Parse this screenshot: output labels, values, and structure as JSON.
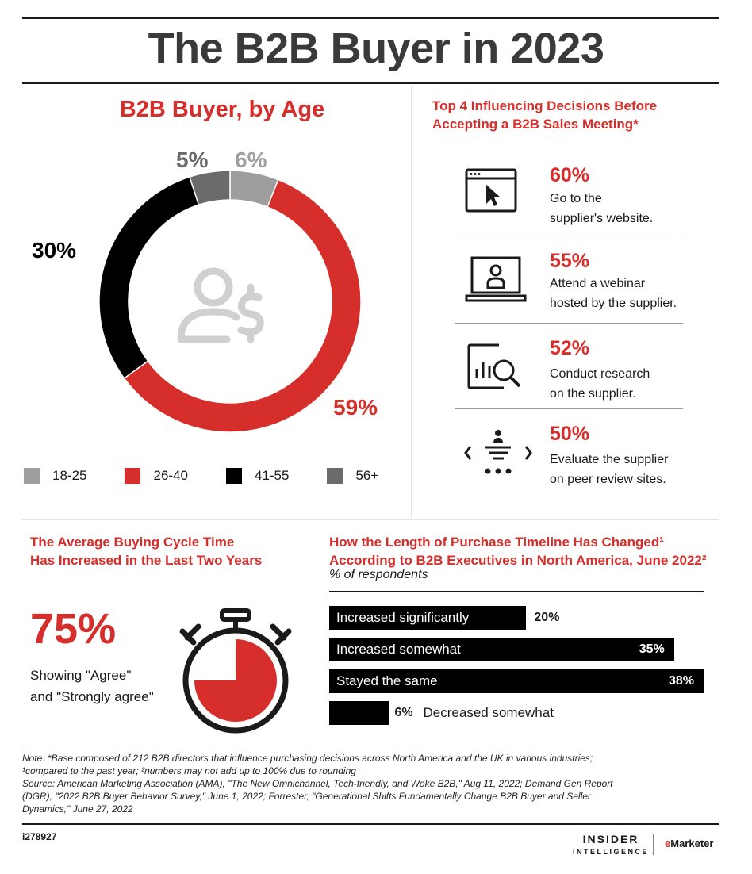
{
  "title": "The B2B Buyer in 2023",
  "age_section": {
    "title": "B2B Buyer, by Age",
    "legend": [
      {
        "label": "18-25",
        "color": "#9e9e9e"
      },
      {
        "label": "26-40",
        "color": "#d62e2a"
      },
      {
        "label": "41-55",
        "color": "#000000"
      },
      {
        "label": "56+",
        "color": "#6b6b6b"
      }
    ],
    "center_icon": "person-dollar-icon"
  },
  "top4": {
    "title_line1": "Top 4 Influencing Decisions Before",
    "title_line2": "Accepting a B2B Sales Meeting*",
    "items": [
      {
        "pct": "60%",
        "line1": "Go to the",
        "line2": "supplier's website.",
        "icon": "browser-cursor-icon"
      },
      {
        "pct": "55%",
        "line1": "Attend a webinar",
        "line2": "hosted by the supplier.",
        "icon": "laptop-person-icon"
      },
      {
        "pct": "52%",
        "line1": "Conduct research",
        "line2": "on the supplier.",
        "icon": "chart-magnifier-icon"
      },
      {
        "pct": "50%",
        "line1": "Evaluate the supplier",
        "line2": "on peer review sites.",
        "icon": "peer-review-icon"
      }
    ]
  },
  "buying_cycle": {
    "title_line1": "The Average Buying Cycle Time",
    "title_line2": "Has Increased in the Last Two Years",
    "value": "75%",
    "desc_line1": "Showing \"Agree\"",
    "desc_line2": "and \"Strongly agree\"",
    "icon": "stopwatch-icon"
  },
  "timeline": {
    "title_line1": "How the Length of Purchase Timeline Has Changed¹",
    "title_line2": "According to B2B Executives in North America, June 2022²",
    "subtitle": "% of respondents"
  },
  "chart_data": [
    {
      "type": "pie",
      "title": "B2B Buyer, by Age",
      "categories": [
        "18-25",
        "26-40",
        "41-55",
        "56+"
      ],
      "values": [
        6,
        59,
        30,
        5
      ],
      "labels": [
        "6%",
        "59%",
        "30%",
        "5%"
      ],
      "colors": [
        "#9e9e9e",
        "#d62e2a",
        "#000000",
        "#6b6b6b"
      ]
    },
    {
      "type": "bar",
      "orientation": "horizontal",
      "categories": [
        "Increased significantly",
        "Increased somewhat",
        "Stayed the same",
        "Decreased somewhat"
      ],
      "values": [
        20,
        35,
        38,
        6
      ],
      "labels": [
        "20%",
        "35%",
        "38%",
        "6%"
      ],
      "xlim": [
        0,
        38
      ]
    }
  ],
  "footer": {
    "note_line1": "Note: *Base composed of 212 B2B directors that influence purchasing decisions across North America and the UK in various industries;",
    "note_line2": "¹compared to the past year; ²numbers may not add up to 100% due to rounding",
    "source_line1": "Source: American Marketing Association (AMA), \"The New Omnichannel, Tech-friendly, and Woke B2B,\" Aug 11, 2022; Demand Gen Report",
    "source_line2": "(DGR), \"2022 B2B Buyer Behavior Survey,\" June 1, 2022; Forrester, \"Generational Shifts Fundamentally Change B2B Buyer and Seller",
    "source_line3": "Dynamics,\" June 27, 2022",
    "code": "i278927",
    "brand_line1": "INSIDER",
    "brand_line2": "INTELLIGENCE",
    "brand2_e": "e",
    "brand2_rest": "Marketer"
  }
}
